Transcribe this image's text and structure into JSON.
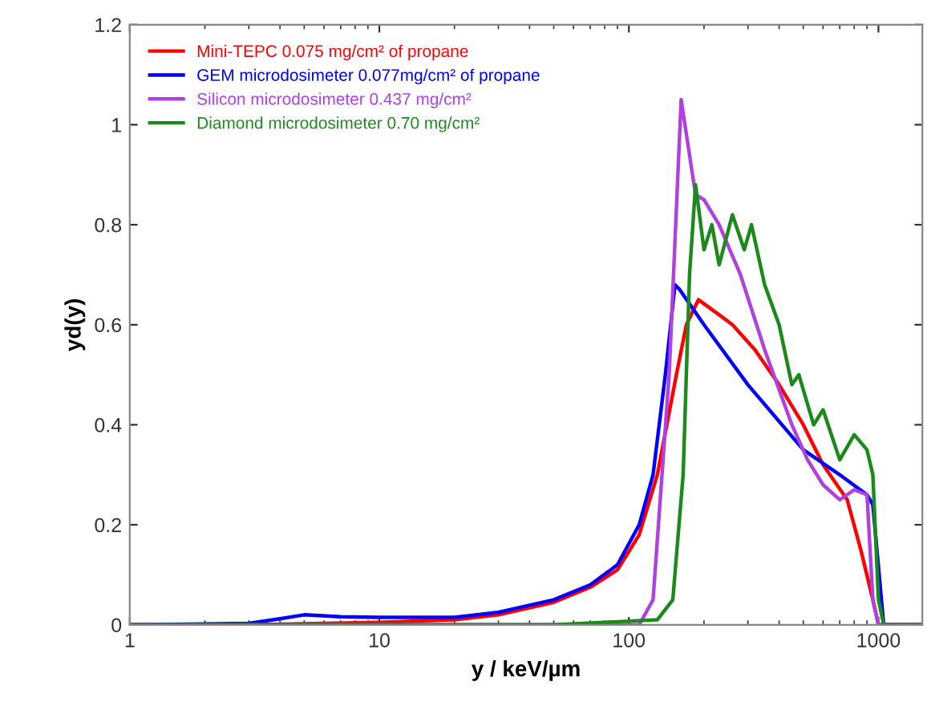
{
  "chart_data": {
    "type": "line",
    "xlabel": "y / keV/µm",
    "ylabel": "yd(y)",
    "log": "x",
    "xlim": [
      1,
      1500
    ],
    "xticks": [
      1,
      10,
      100,
      1000
    ],
    "ylim": [
      0,
      1.2
    ],
    "yticks": [
      0,
      {
        "value": 0.2,
        "label": "0.2"
      },
      {
        "value": 0.4,
        "label": "0.4"
      },
      {
        "value": 0.6,
        "label": "0.6"
      },
      {
        "value": 0.8,
        "label": "0.8"
      },
      1,
      {
        "value": 1.2,
        "label": "1.2"
      }
    ],
    "grid": false,
    "legend": "top left",
    "marker": "none",
    "line_style": "solid",
    "series": [
      {
        "name": "Mini-TEPC 0.075 mg/cm² of propane",
        "color": "#ff0000",
        "x": [
          1,
          3,
          5,
          10,
          20,
          30,
          50,
          70,
          90,
          110,
          130,
          155,
          170,
          190,
          230,
          260,
          320,
          400,
          500,
          600,
          750,
          850,
          950,
          1000,
          1500
        ],
        "values": [
          0,
          0,
          0.002,
          0.005,
          0.01,
          0.02,
          0.045,
          0.075,
          0.11,
          0.18,
          0.3,
          0.5,
          0.6,
          0.65,
          0.62,
          0.6,
          0.55,
          0.48,
          0.4,
          0.32,
          0.25,
          0.15,
          0.05,
          0,
          0
        ]
      },
      {
        "name": "GEM microdosimeter 0.077mg/cm² of propane",
        "color": "#0000ff",
        "x": [
          1,
          3,
          4,
          5,
          7,
          10,
          20,
          30,
          50,
          70,
          90,
          110,
          125,
          140,
          153,
          160,
          200,
          300,
          500,
          700,
          900,
          950,
          1050,
          1500
        ],
        "values": [
          0,
          0.003,
          0.012,
          0.02,
          0.016,
          0.015,
          0.015,
          0.025,
          0.05,
          0.08,
          0.12,
          0.2,
          0.3,
          0.5,
          0.68,
          0.67,
          0.6,
          0.48,
          0.35,
          0.3,
          0.26,
          0.24,
          0,
          0
        ]
      },
      {
        "name": "Silicon microdosimeter 0.437 mg/cm²",
        "color": "#b040e0",
        "x": [
          1,
          50,
          110,
          125,
          145,
          162,
          185,
          200,
          230,
          280,
          350,
          450,
          520,
          600,
          700,
          800,
          900,
          950,
          1000,
          1500
        ],
        "values": [
          0,
          0,
          0,
          0.05,
          0.5,
          1.05,
          0.86,
          0.85,
          0.8,
          0.7,
          0.55,
          0.4,
          0.33,
          0.28,
          0.25,
          0.27,
          0.26,
          0.05,
          0,
          0
        ]
      },
      {
        "name": "Diamond microdosimeter 0.70 mg/cm²",
        "color": "#1a8a1a",
        "x": [
          1,
          50,
          130,
          150,
          165,
          175,
          185,
          200,
          215,
          230,
          260,
          290,
          310,
          350,
          400,
          450,
          480,
          550,
          600,
          700,
          800,
          900,
          950,
          1000,
          1050,
          1500
        ],
        "values": [
          0,
          0,
          0.01,
          0.05,
          0.3,
          0.7,
          0.88,
          0.75,
          0.8,
          0.72,
          0.82,
          0.75,
          0.8,
          0.68,
          0.6,
          0.48,
          0.5,
          0.4,
          0.43,
          0.33,
          0.38,
          0.35,
          0.3,
          0.05,
          0,
          0
        ]
      }
    ]
  }
}
